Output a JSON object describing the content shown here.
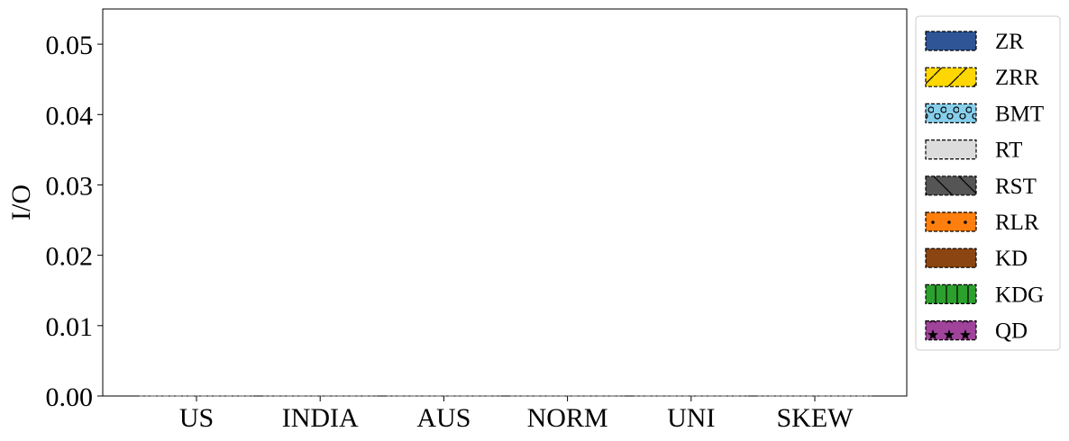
{
  "chart_data": {
    "type": "bar",
    "categories": [
      "US",
      "INDIA",
      "AUS",
      "NORM",
      "UNI",
      "SKEW"
    ],
    "ylabel": "I/O",
    "xlabel": "",
    "ylim": [
      0,
      0.055
    ],
    "yticks": [
      "0.00",
      "0.01",
      "0.02",
      "0.03",
      "0.04",
      "0.05"
    ],
    "ytick_values": [
      0,
      0.01,
      0.02,
      0.03,
      0.04,
      0.05
    ],
    "grid": false,
    "legend_position": "outside-right",
    "series": [
      {
        "name": "ZR",
        "color": "#2f5597",
        "hatch": "none",
        "values": [
          0,
          0,
          0,
          0,
          0,
          0
        ]
      },
      {
        "name": "ZRR",
        "color": "#ffd700",
        "hatch": "slash",
        "values": [
          0,
          0,
          0,
          0,
          0,
          0
        ]
      },
      {
        "name": "BMT",
        "color": "#87ceeb",
        "hatch": "circles",
        "values": [
          0,
          0,
          0,
          0,
          0,
          0
        ]
      },
      {
        "name": "RT",
        "color": "#dcdcdc",
        "hatch": "none",
        "values": [
          0,
          0,
          0,
          0,
          0,
          0
        ]
      },
      {
        "name": "RST",
        "color": "#555555",
        "hatch": "backslash",
        "values": [
          0,
          0,
          0,
          0,
          0,
          0
        ]
      },
      {
        "name": "RLR",
        "color": "#ff7f0e",
        "hatch": "dots",
        "values": [
          0,
          0,
          0,
          0,
          0,
          0
        ]
      },
      {
        "name": "KD",
        "color": "#8b4513",
        "hatch": "none",
        "values": [
          0,
          0,
          0,
          0,
          0,
          0
        ]
      },
      {
        "name": "KDG",
        "color": "#2ca02c",
        "hatch": "vertical",
        "values": [
          0,
          0,
          0,
          0,
          0,
          0
        ]
      },
      {
        "name": "QD",
        "color": "#a0439a",
        "hatch": "stars",
        "values": [
          0,
          0,
          0,
          0,
          0,
          0
        ]
      }
    ]
  }
}
